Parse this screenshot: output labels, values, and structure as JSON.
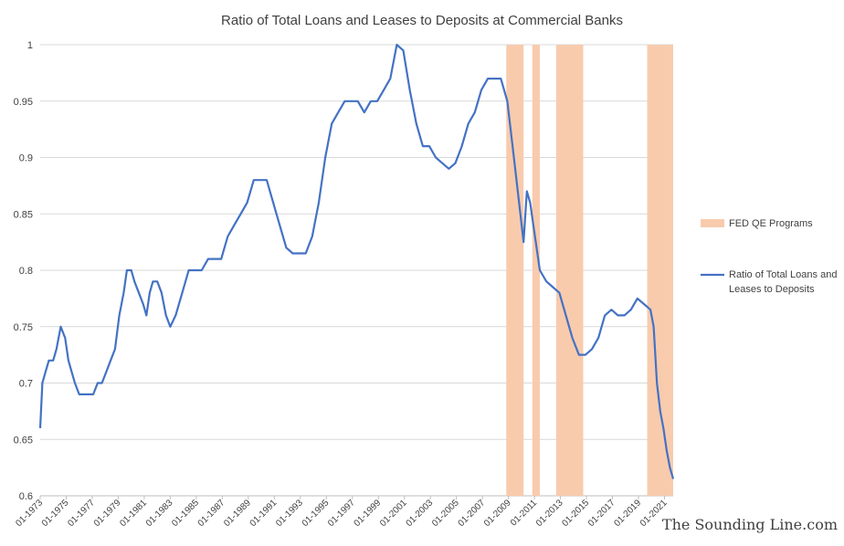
{
  "chart_data": {
    "type": "line",
    "title": "Ratio of Total Loans and Leases to Deposits at Commercial Banks",
    "xlabel": "",
    "ylabel": "",
    "ylim": [
      0.6,
      1.0
    ],
    "yticks": [
      "0.6",
      "0.65",
      "0.7",
      "0.75",
      "0.8",
      "0.85",
      "0.9",
      "0.95",
      "1"
    ],
    "xlim": [
      "1973-01",
      "2021-09"
    ],
    "xticks": [
      "01-1973",
      "01-1975",
      "01-1977",
      "01-1979",
      "01-1981",
      "01-1983",
      "01-1985",
      "01-1987",
      "01-1989",
      "01-1991",
      "01-1993",
      "01-1995",
      "01-1997",
      "01-1999",
      "01-2001",
      "01-2003",
      "01-2005",
      "01-2007",
      "01-2009",
      "01-2011",
      "01-2013",
      "01-2015",
      "01-2017",
      "01-2019",
      "01-2021"
    ],
    "grid": true,
    "legend": "right",
    "series": [
      {
        "name": "Ratio of Total Loans and Leases to Deposits",
        "color": "#4472c4",
        "points": [
          [
            "1973-01",
            0.66
          ],
          [
            "1973-03",
            0.7
          ],
          [
            "1973-06",
            0.71
          ],
          [
            "1973-09",
            0.72
          ],
          [
            "1974-01",
            0.72
          ],
          [
            "1974-04",
            0.73
          ],
          [
            "1974-08",
            0.75
          ],
          [
            "1974-12",
            0.74
          ],
          [
            "1975-03",
            0.72
          ],
          [
            "1975-06",
            0.71
          ],
          [
            "1975-09",
            0.7
          ],
          [
            "1976-01",
            0.69
          ],
          [
            "1976-06",
            0.69
          ],
          [
            "1976-10",
            0.69
          ],
          [
            "1977-02",
            0.69
          ],
          [
            "1977-06",
            0.7
          ],
          [
            "1977-10",
            0.7
          ],
          [
            "1978-02",
            0.71
          ],
          [
            "1978-06",
            0.72
          ],
          [
            "1978-10",
            0.73
          ],
          [
            "1979-02",
            0.76
          ],
          [
            "1979-06",
            0.78
          ],
          [
            "1979-09",
            0.8
          ],
          [
            "1980-01",
            0.8
          ],
          [
            "1980-04",
            0.79
          ],
          [
            "1980-08",
            0.78
          ],
          [
            "1980-12",
            0.77
          ],
          [
            "1981-03",
            0.76
          ],
          [
            "1981-06",
            0.78
          ],
          [
            "1981-09",
            0.79
          ],
          [
            "1982-01",
            0.79
          ],
          [
            "1982-05",
            0.78
          ],
          [
            "1982-09",
            0.76
          ],
          [
            "1983-01",
            0.75
          ],
          [
            "1983-06",
            0.76
          ],
          [
            "1983-12",
            0.78
          ],
          [
            "1984-06",
            0.8
          ],
          [
            "1984-12",
            0.8
          ],
          [
            "1985-06",
            0.8
          ],
          [
            "1985-12",
            0.81
          ],
          [
            "1986-06",
            0.81
          ],
          [
            "1986-12",
            0.81
          ],
          [
            "1987-06",
            0.83
          ],
          [
            "1987-12",
            0.84
          ],
          [
            "1988-06",
            0.85
          ],
          [
            "1988-12",
            0.86
          ],
          [
            "1989-06",
            0.88
          ],
          [
            "1989-12",
            0.88
          ],
          [
            "1990-06",
            0.88
          ],
          [
            "1990-12",
            0.86
          ],
          [
            "1991-06",
            0.84
          ],
          [
            "1991-12",
            0.82
          ],
          [
            "1992-06",
            0.815
          ],
          [
            "1992-12",
            0.815
          ],
          [
            "1993-06",
            0.815
          ],
          [
            "1993-12",
            0.83
          ],
          [
            "1994-06",
            0.86
          ],
          [
            "1994-12",
            0.9
          ],
          [
            "1995-06",
            0.93
          ],
          [
            "1995-12",
            0.94
          ],
          [
            "1996-06",
            0.95
          ],
          [
            "1996-12",
            0.95
          ],
          [
            "1997-06",
            0.95
          ],
          [
            "1997-12",
            0.94
          ],
          [
            "1998-06",
            0.95
          ],
          [
            "1998-12",
            0.95
          ],
          [
            "1999-06",
            0.96
          ],
          [
            "1999-12",
            0.97
          ],
          [
            "2000-06",
            1.0
          ],
          [
            "2000-12",
            0.995
          ],
          [
            "2001-06",
            0.96
          ],
          [
            "2001-12",
            0.93
          ],
          [
            "2002-06",
            0.91
          ],
          [
            "2002-12",
            0.91
          ],
          [
            "2003-06",
            0.9
          ],
          [
            "2003-12",
            0.895
          ],
          [
            "2004-06",
            0.89
          ],
          [
            "2004-12",
            0.895
          ],
          [
            "2005-06",
            0.91
          ],
          [
            "2005-12",
            0.93
          ],
          [
            "2006-06",
            0.94
          ],
          [
            "2006-12",
            0.96
          ],
          [
            "2007-06",
            0.97
          ],
          [
            "2007-12",
            0.97
          ],
          [
            "2008-06",
            0.97
          ],
          [
            "2008-12",
            0.95
          ],
          [
            "2009-06",
            0.9
          ],
          [
            "2009-12",
            0.85
          ],
          [
            "2010-03",
            0.825
          ],
          [
            "2010-06",
            0.87
          ],
          [
            "2010-09",
            0.86
          ],
          [
            "2010-12",
            0.84
          ],
          [
            "2011-06",
            0.8
          ],
          [
            "2011-12",
            0.79
          ],
          [
            "2012-06",
            0.785
          ],
          [
            "2012-12",
            0.78
          ],
          [
            "2013-06",
            0.76
          ],
          [
            "2013-12",
            0.74
          ],
          [
            "2014-06",
            0.725
          ],
          [
            "2014-12",
            0.725
          ],
          [
            "2015-06",
            0.73
          ],
          [
            "2015-12",
            0.74
          ],
          [
            "2016-06",
            0.76
          ],
          [
            "2016-12",
            0.765
          ],
          [
            "2017-06",
            0.76
          ],
          [
            "2017-12",
            0.76
          ],
          [
            "2018-06",
            0.765
          ],
          [
            "2018-12",
            0.775
          ],
          [
            "2019-06",
            0.77
          ],
          [
            "2019-12",
            0.765
          ],
          [
            "2020-03",
            0.75
          ],
          [
            "2020-06",
            0.7
          ],
          [
            "2020-09",
            0.675
          ],
          [
            "2020-12",
            0.66
          ],
          [
            "2021-03",
            0.64
          ],
          [
            "2021-06",
            0.625
          ],
          [
            "2021-09",
            0.615
          ]
        ]
      },
      {
        "name": "FED QE Programs",
        "color": "#f8cbad",
        "ranges": [
          [
            "2008-11",
            "2010-03"
          ],
          [
            "2010-11",
            "2011-06"
          ],
          [
            "2012-09",
            "2014-10"
          ],
          [
            "2019-09",
            "2021-09"
          ]
        ]
      }
    ]
  },
  "legend": {
    "qe_label": "FED QE Programs",
    "line_label_1": "Ratio of Total Loans and",
    "line_label_2": "Leases to Deposits"
  },
  "watermark": "The Sounding Line.com"
}
